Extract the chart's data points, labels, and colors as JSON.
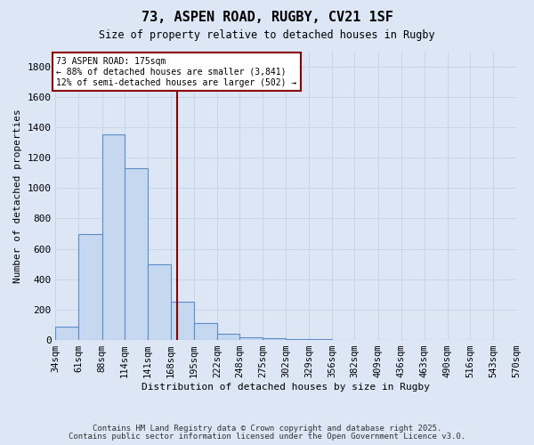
{
  "title1": "73, ASPEN ROAD, RUGBY, CV21 1SF",
  "title2": "Size of property relative to detached houses in Rugby",
  "xlabel": "Distribution of detached houses by size in Rugby",
  "ylabel": "Number of detached properties",
  "bar_edges": [
    34,
    61,
    88,
    114,
    141,
    168,
    195,
    222,
    248,
    275,
    302,
    329,
    356,
    382,
    409,
    436,
    463,
    490,
    516,
    543,
    570
  ],
  "bar_heights": [
    90,
    700,
    1350,
    1130,
    500,
    255,
    110,
    40,
    20,
    10,
    5,
    5,
    3,
    3,
    2,
    2,
    1,
    1,
    1,
    1
  ],
  "bar_color": "#c5d8f0",
  "bar_edge_color": "#5b8dc8",
  "property_line_x": 175,
  "property_line_color": "#8b0000",
  "annotation_title": "73 ASPEN ROAD: 175sqm",
  "annotation_line1": "← 88% of detached houses are smaller (3,841)",
  "annotation_line2": "12% of semi-detached houses are larger (502) →",
  "annotation_box_color": "#8b0000",
  "annotation_fill": "#ffffff",
  "ylim": [
    0,
    1900
  ],
  "yticks": [
    0,
    200,
    400,
    600,
    800,
    1000,
    1200,
    1400,
    1600,
    1800
  ],
  "bg_color": "#dce6f5",
  "grid_color": "#c8d4e8",
  "footnote1": "Contains HM Land Registry data © Crown copyright and database right 2025.",
  "footnote2": "Contains public sector information licensed under the Open Government Licence v3.0."
}
